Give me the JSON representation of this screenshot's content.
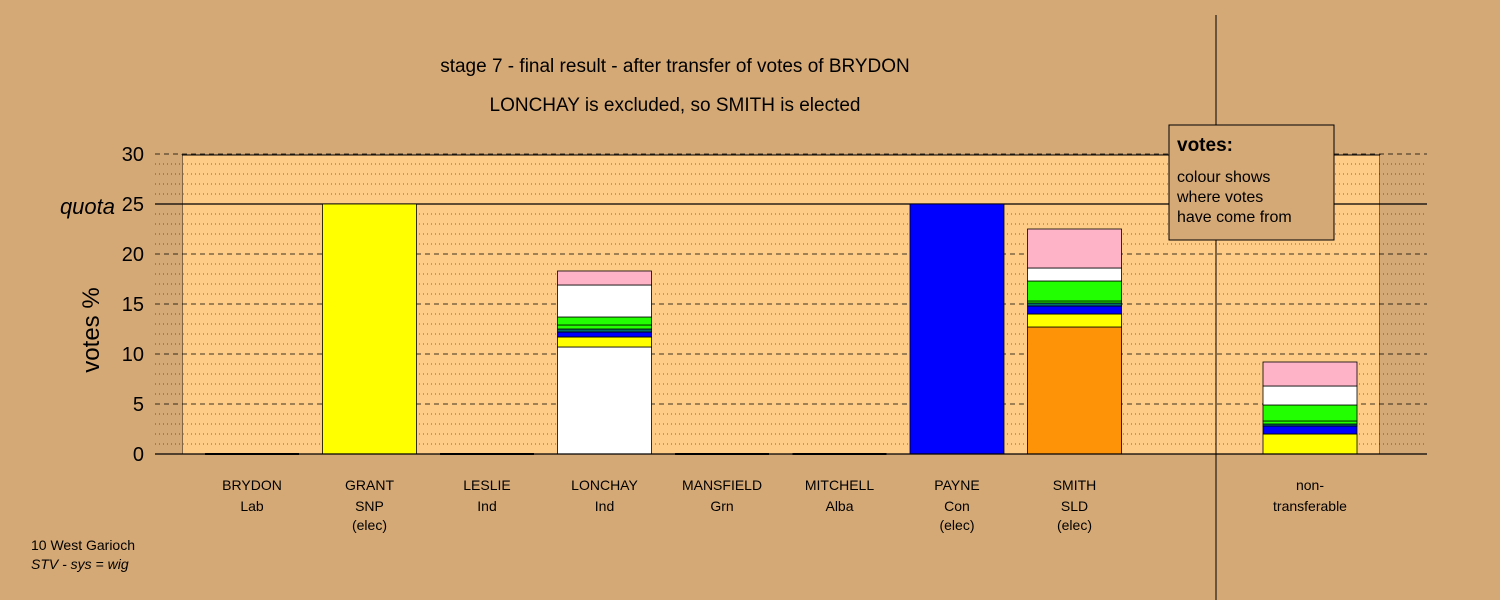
{
  "chart_data": {
    "type": "bar",
    "title": "stage 7 - final result - after transfer of votes of BRYDON",
    "subtitle": "LONCHAY is excluded, so SMITH is elected",
    "ylabel": "votes %",
    "quota_label": "quota",
    "quota_value": 25,
    "ylim": [
      0,
      30
    ],
    "yticks": [
      "0",
      "5",
      "10",
      "15",
      "20",
      "25",
      "30"
    ],
    "grid": "dashed at 5s, dotted at 1s",
    "legend": {
      "title": "votes:",
      "lines": [
        "colour shows",
        "where votes",
        "have come from"
      ],
      "placement": "top-right"
    },
    "footnote": {
      "line1": "10 West Garioch",
      "line2": "STV - sys = wig"
    },
    "sources": {
      "SLD": "#ff9308",
      "SNP": "#ffff00",
      "Con": "#0000ff",
      "Lab": "#ffb3c6",
      "Ind": "#ffffff",
      "Grn": "#22ff00",
      "Alba": "#006d6d",
      "Other": "#888888"
    },
    "candidates": [
      {
        "name": "BRYDON",
        "party": "Lab",
        "status": "",
        "segments": []
      },
      {
        "name": "GRANT",
        "party": "SNP",
        "status": "(elec)",
        "segments": [
          {
            "source": "SNP",
            "value": 25.0
          }
        ]
      },
      {
        "name": "LESLIE",
        "party": "Ind",
        "status": "",
        "segments": []
      },
      {
        "name": "LONCHAY",
        "party": "Ind",
        "status": "",
        "segments": [
          {
            "source": "Ind",
            "value": 10.7
          },
          {
            "source": "SNP",
            "value": 1.0
          },
          {
            "source": "Con",
            "value": 0.5
          },
          {
            "source": "Alba",
            "value": 0.3
          },
          {
            "source": "Grn",
            "value": 0.4
          },
          {
            "source": "Grn",
            "value": 0.8
          },
          {
            "source": "Ind",
            "value": 3.2
          },
          {
            "source": "Lab",
            "value": 1.4
          }
        ]
      },
      {
        "name": "MANSFIELD",
        "party": "Grn",
        "status": "",
        "segments": []
      },
      {
        "name": "MITCHELL",
        "party": "Alba",
        "status": "",
        "segments": []
      },
      {
        "name": "PAYNE",
        "party": "Con",
        "status": "(elec)",
        "segments": [
          {
            "source": "Con",
            "value": 25.0
          }
        ]
      },
      {
        "name": "SMITH",
        "party": "SLD",
        "status": "(elec)",
        "segments": [
          {
            "source": "SLD",
            "value": 12.7
          },
          {
            "source": "SNP",
            "value": 1.3
          },
          {
            "source": "Con",
            "value": 0.8
          },
          {
            "source": "Alba",
            "value": 0.3
          },
          {
            "source": "Grn",
            "value": 0.2
          },
          {
            "source": "Grn",
            "value": 2.0
          },
          {
            "source": "Ind",
            "value": 1.3
          },
          {
            "source": "Lab",
            "value": 3.9
          }
        ]
      }
    ],
    "non_transferable": {
      "label_line1": "non-",
      "label_line2": "transferable",
      "segments": [
        {
          "source": "SNP",
          "value": 2.0
        },
        {
          "source": "Con",
          "value": 0.8
        },
        {
          "source": "Alba",
          "value": 0.2
        },
        {
          "source": "Grn",
          "value": 0.3
        },
        {
          "source": "Grn",
          "value": 1.6
        },
        {
          "source": "Ind",
          "value": 1.9
        },
        {
          "source": "Lab",
          "value": 2.4
        }
      ]
    }
  }
}
